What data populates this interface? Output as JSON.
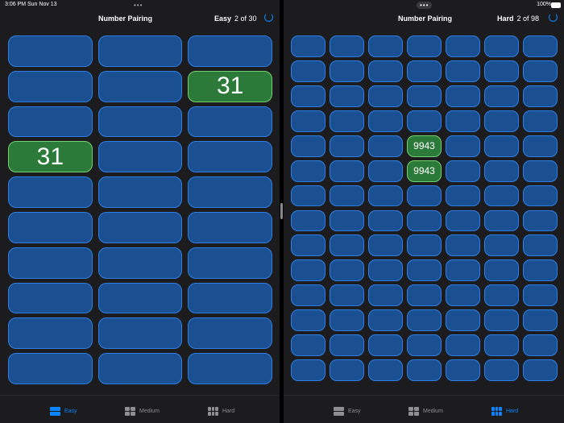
{
  "status_bar": {
    "time": "3:06 PM",
    "date": "Sun Nov 13",
    "battery": "100%"
  },
  "panes": [
    {
      "title": "Number Pairing",
      "level": "Easy",
      "progress": "2 of 30",
      "columns": 3,
      "rows": 10,
      "revealed": [
        {
          "row": 1,
          "col": 2,
          "label": "31"
        },
        {
          "row": 3,
          "col": 0,
          "label": "31"
        }
      ],
      "tabs": [
        "Easy",
        "Medium",
        "Hard"
      ],
      "selected_tab": 0
    },
    {
      "title": "Number Pairing",
      "level": "Hard",
      "progress": "2 of 98",
      "columns": 7,
      "rows": 14,
      "revealed": [
        {
          "row": 4,
          "col": 3,
          "label": "9943"
        },
        {
          "row": 5,
          "col": 3,
          "label": "9943"
        }
      ],
      "tabs": [
        "Easy",
        "Medium",
        "Hard"
      ],
      "selected_tab": 2
    }
  ]
}
